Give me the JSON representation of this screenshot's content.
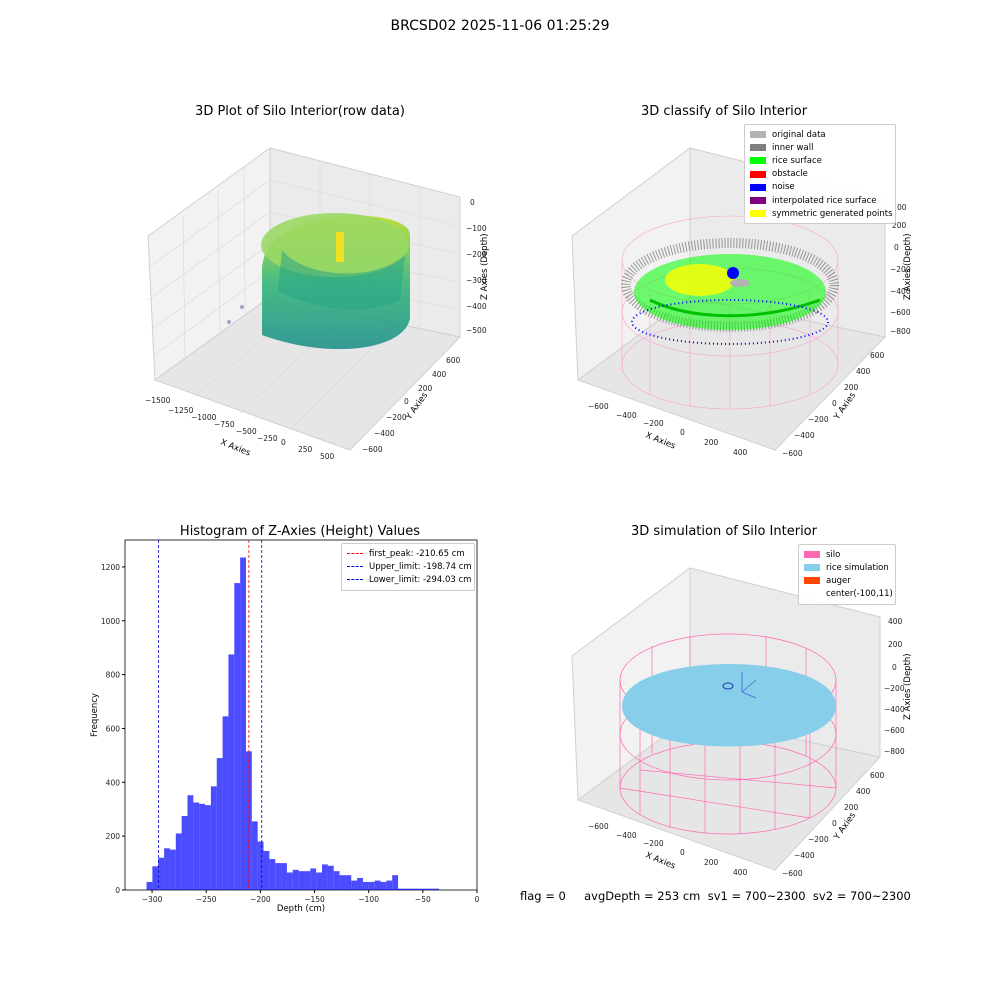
{
  "suptitle": "BRCSD02 2025-11-06 01:25:29",
  "panel_titles": {
    "raw": "3D Plot of Silo Interior(row data)",
    "classify": "3D classify of Silo Interior",
    "histogram": "Histogram of Z-Axies (Height) Values",
    "simulation": "3D simulation of Silo Interior"
  },
  "raw_axes": {
    "x_label": "X Axies",
    "y_label": "Y Axies",
    "z_label": "Z Axies (Depth)",
    "x_ticks": [
      "−1500",
      "−1250",
      "−1000",
      "−750",
      "−500",
      "−250",
      "0",
      "250",
      "500"
    ],
    "y_ticks": [
      "−600",
      "−400",
      "−200",
      "0",
      "200",
      "400",
      "600"
    ],
    "z_ticks": [
      "0",
      "−100",
      "−200",
      "−300",
      "−400",
      "−500"
    ]
  },
  "classify_axes": {
    "x_label": "X Axies",
    "y_label": "Y Axies",
    "z_label": "Z Axies (Depth)",
    "x_ticks": [
      "−600",
      "−400",
      "−200",
      "0",
      "200",
      "400"
    ],
    "y_ticks": [
      "−600",
      "−400",
      "−200",
      "0",
      "200",
      "400",
      "600"
    ],
    "z_ticks": [
      "200",
      "0",
      "−200",
      "−400",
      "−600",
      "−800"
    ],
    "z_ticks_partial": [
      "00"
    ]
  },
  "classify_legend": [
    {
      "label": "original data",
      "color": "#b3b3b3"
    },
    {
      "label": "inner wall",
      "color": "#808080"
    },
    {
      "label": "rice surface",
      "color": "#00ff00"
    },
    {
      "label": "obstacle",
      "color": "#ff0000"
    },
    {
      "label": "noise",
      "color": "#0000ff"
    },
    {
      "label": "interpolated rice surface",
      "color": "#800080"
    },
    {
      "label": "symmetric generated points",
      "color": "#ffff00"
    }
  ],
  "sim_axes": {
    "x_label": "X Axies",
    "y_label": "Y Axies",
    "z_label": "Z Axies (Depth)",
    "x_ticks": [
      "−600",
      "−400",
      "−200",
      "0",
      "200",
      "400"
    ],
    "y_ticks": [
      "−600",
      "−400",
      "−200",
      "0",
      "200",
      "400",
      "600"
    ],
    "z_ticks": [
      "400",
      "200",
      "0",
      "−200",
      "−400",
      "−600",
      "−800"
    ]
  },
  "sim_legend": [
    {
      "label": "silo",
      "color": "#ff69b4"
    },
    {
      "label": "rice simulation",
      "color": "#87ceeb"
    },
    {
      "label": "auger",
      "color": "#ff4500"
    },
    {
      "label": "center(-100,11)",
      "color": ""
    }
  ],
  "status_line": "flag = 0     avgDepth = 253 cm  sv1 = 700~2300  sv2 = 700~2300",
  "colors": {
    "hist_bar": "#0000ff",
    "peak_line": "#ff0000",
    "limit_line": "#0000cc"
  },
  "chart_data": {
    "type": "bar",
    "title": "Histogram of Z-Axies (Height) Values",
    "xlabel": "Depth (cm)",
    "ylabel": "Frequency",
    "xlim": [
      -325,
      0
    ],
    "ylim": [
      0,
      1300
    ],
    "x_ticks": [
      -300,
      -250,
      -200,
      -150,
      -100,
      -50,
      0
    ],
    "y_ticks": [
      0,
      200,
      400,
      600,
      800,
      1000,
      1200
    ],
    "bin_edges": [
      -305.1,
      -299.7,
      -294.3,
      -288.9,
      -283.5,
      -278.1,
      -272.7,
      -267.3,
      -261.9,
      -256.5,
      -251.1,
      -245.7,
      -240.3,
      -234.9,
      -229.5,
      -224.1,
      -218.7,
      -213.3,
      -207.9,
      -202.5,
      -197.1,
      -191.7,
      -186.3,
      -180.9,
      -175.5,
      -170.1,
      -164.7,
      -159.3,
      -153.9,
      -148.5,
      -143.1,
      -137.7,
      -132.3,
      -126.9,
      -121.5,
      -116.1,
      -110.7,
      -105.3,
      -99.9,
      -94.5,
      -89.1,
      -83.7,
      -78.3,
      -72.9,
      -67.5,
      -62.1,
      -56.7,
      -51.3,
      -45.9,
      -40.5,
      -35.1,
      -29.7,
      -24.3,
      -18.9,
      -13.5
    ],
    "counts": [
      30,
      88,
      120,
      155,
      150,
      210,
      275,
      352,
      325,
      320,
      315,
      385,
      490,
      645,
      875,
      1140,
      1235,
      515,
      255,
      180,
      145,
      115,
      100,
      100,
      65,
      75,
      70,
      70,
      80,
      65,
      95,
      90,
      70,
      55,
      55,
      35,
      45,
      30,
      30,
      35,
      30,
      35,
      55,
      5,
      5,
      5,
      5,
      5,
      5,
      5,
      0,
      0,
      0,
      0
    ],
    "vlines": [
      {
        "x": -210.65,
        "label": "first_peak: -210.65 cm",
        "color": "#ff0000"
      },
      {
        "x": -198.74,
        "label": "Upper_limit: -198.74 cm",
        "color": "#0000cc"
      },
      {
        "x": -294.03,
        "label": "Lower_limit: -294.03 cm",
        "color": "#0000cc"
      }
    ]
  }
}
